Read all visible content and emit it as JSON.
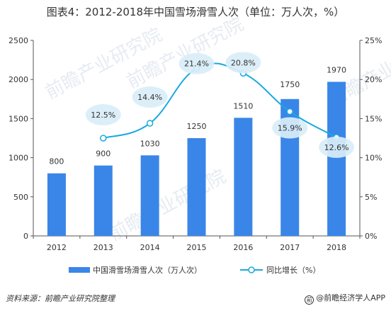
{
  "title": "图表4：2012-2018年中国雪场滑雪人次（单位：万人次，%）",
  "source": "资料来源：前瞻产业研究院整理",
  "brand": "@前瞻经济学人APP",
  "watermark": "前瞻产业研究院",
  "colors": {
    "bar": "#3a86e8",
    "line": "#1aa8e0",
    "bubble": "#d9eef7",
    "axis": "#555555"
  },
  "chart_data": {
    "type": "bar",
    "categories": [
      "2012",
      "2013",
      "2014",
      "2015",
      "2016",
      "2017",
      "2018"
    ],
    "series": [
      {
        "name": "中国滑雪场滑雪人次（万人次）",
        "type": "bar",
        "axis": "left",
        "values": [
          800,
          900,
          1030,
          1250,
          1510,
          1750,
          1970
        ]
      },
      {
        "name": "同比增长（%）",
        "type": "line",
        "axis": "right",
        "values": [
          null,
          12.5,
          14.4,
          21.4,
          20.8,
          15.9,
          12.6
        ]
      }
    ],
    "bar_labels": [
      "800",
      "900",
      "1030",
      "1250",
      "1510",
      "1750",
      "1970"
    ],
    "line_labels": [
      "",
      "12.5%",
      "14.4%",
      "21.4%",
      "20.8%",
      "15.9%",
      "12.6%"
    ],
    "y_left": {
      "ylim": [
        0,
        2500
      ],
      "ticks": [
        0,
        500,
        1000,
        1500,
        2000,
        2500
      ],
      "tick_labels": [
        "0",
        "500",
        "1000",
        "1500",
        "2000",
        "2500"
      ]
    },
    "y_right": {
      "ylim": [
        0,
        25
      ],
      "ticks": [
        0,
        5,
        10,
        15,
        20,
        25
      ],
      "tick_labels": [
        "0%",
        "5%",
        "10%",
        "15%",
        "20%",
        "25%"
      ]
    },
    "legend": {
      "position": "bottom",
      "bar_label": "中国滑雪场滑雪人次（万人次）",
      "line_label": "同比增长（%）"
    },
    "grid": false
  }
}
